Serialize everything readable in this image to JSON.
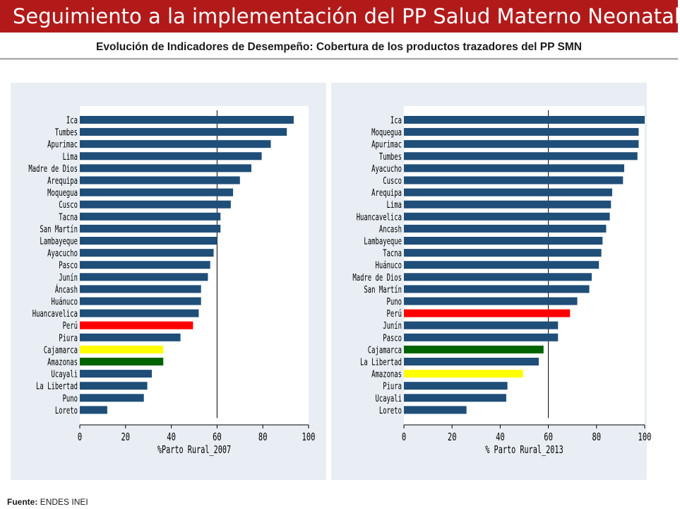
{
  "header": {
    "title": "Seguimiento a la implementación del PP Salud Materno Neonatal",
    "subtitle": "Evolución de Indicadores de Desempeño: Cobertura de los productos trazadores del PP SMN"
  },
  "footer": {
    "source_label": "Fuente:",
    "source_text": "ENDES INEI"
  },
  "colors": {
    "title_bg": "#b21a1a",
    "bar_default": "#1f4e79",
    "highlight_red": "#ff0000",
    "highlight_yellow": "#ffff00",
    "highlight_green": "#006400",
    "panel_bg": "#e8eef3"
  },
  "chart_data": [
    {
      "type": "bar",
      "orientation": "horizontal",
      "xlabel": "%Parto Rural_2007",
      "xlim": [
        0,
        100
      ],
      "xticks": [
        0,
        20,
        40,
        60,
        80,
        100
      ],
      "reference_line": 60,
      "grid": false,
      "categories": [
        "Ica",
        "Tumbes",
        "Apurimac",
        "Lima",
        "Madre de Dios",
        "Arequipa",
        "Moquegua",
        "Cusco",
        "Tacna",
        "San Martín",
        "Lambayeque",
        "Ayacucho",
        "Pasco",
        "Junín",
        "Áncash",
        "Huánuco",
        "Huancavelica",
        "Perú",
        "Piura",
        "Cajamarca",
        "Amazonas",
        "Ucayali",
        "La Libertad",
        "Puno",
        "Loreto"
      ],
      "values": [
        93.5,
        90.5,
        83.5,
        79.5,
        75,
        70,
        67,
        66,
        61.5,
        61.5,
        60,
        58.5,
        57,
        56,
        53,
        53,
        52,
        49.5,
        44,
        36.5,
        36.5,
        31.5,
        29.5,
        28,
        12
      ],
      "highlights": {
        "Perú": "red",
        "Cajamarca": "yellow",
        "Amazonas": "green"
      }
    },
    {
      "type": "bar",
      "orientation": "horizontal",
      "xlabel": "% Parto Rural_2013",
      "xlim": [
        0,
        100
      ],
      "xticks": [
        0,
        20,
        40,
        60,
        80,
        100
      ],
      "reference_line": 60,
      "grid": false,
      "categories": [
        "Ica",
        "Moquegua",
        "Apurimac",
        "Tumbes",
        "Ayacucho",
        "Cusco",
        "Arequipa",
        "Lima",
        "Huancavelica",
        "Ancash",
        "Lambayeque",
        "Tacna",
        "Huánuco",
        "Madre de Dios",
        "San Martín",
        "Puno",
        "Perú",
        "Junín",
        "Pasco",
        "Cajamarca",
        "La Libertad",
        "Amazonas",
        "Piura",
        "Ucayali",
        "Loreto"
      ],
      "values": [
        100,
        97.5,
        97.5,
        97,
        91.5,
        91,
        86.5,
        86,
        85.5,
        84,
        82.5,
        82,
        81,
        78,
        77,
        72,
        69,
        64,
        64,
        58,
        56,
        49.5,
        43,
        42.5,
        26
      ],
      "highlights": {
        "Perú": "red",
        "Cajamarca": "green",
        "Amazonas": "yellow"
      }
    }
  ]
}
